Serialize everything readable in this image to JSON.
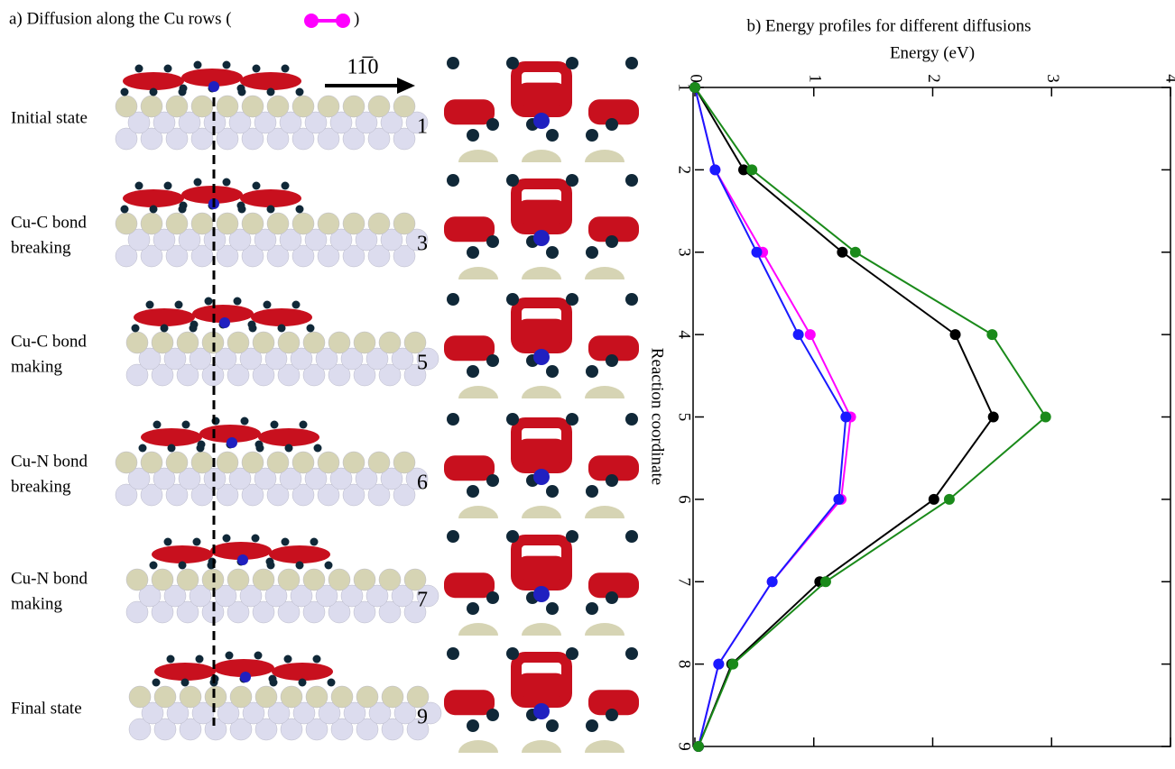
{
  "panel_a": {
    "title": "a) Diffusion along the Cu rows (",
    "title_end": ")",
    "direction": "11̅0",
    "states": [
      {
        "lines": [
          "Initial  state"
        ],
        "step": "1"
      },
      {
        "lines": [
          "Cu-C bond",
          "breaking"
        ],
        "step": "3"
      },
      {
        "lines": [
          "Cu-C  bond",
          "making"
        ],
        "step": "5"
      },
      {
        "lines": [
          "Cu-N bond",
          "breaking"
        ],
        "step": "6"
      },
      {
        "lines": [
          "Cu-N bond",
          "making"
        ],
        "step": "7"
      },
      {
        "lines": [
          "Final state"
        ],
        "step": "9"
      }
    ]
  },
  "chart_data": {
    "type": "line",
    "title": "b) Energy profiles for different diffusions",
    "y_label": "Energy (eV)",
    "x_label": "Reaction coordinate",
    "x": [
      1,
      2,
      3,
      4,
      5,
      6,
      7,
      8,
      9
    ],
    "xlim": [
      1,
      9
    ],
    "xticks": [
      1,
      2,
      3,
      4,
      5,
      6,
      7,
      8,
      9
    ],
    "ylim": [
      0,
      4
    ],
    "yticks": [
      0,
      1,
      2,
      3,
      4
    ],
    "series": [
      {
        "color": "#ff00ff",
        "values": [
          0,
          0.17,
          0.57,
          0.97,
          1.31,
          1.23,
          0.65,
          0.2,
          0.03
        ]
      },
      {
        "color": "#1a1aff",
        "values": [
          0,
          0.17,
          0.52,
          0.87,
          1.27,
          1.21,
          0.65,
          0.2,
          0.03
        ]
      },
      {
        "color": "#000000",
        "values": [
          0,
          0.41,
          1.24,
          2.19,
          2.51,
          2.01,
          1.05,
          0.31,
          0.03
        ]
      },
      {
        "color": "#1a8a1a",
        "values": [
          0,
          0.48,
          1.35,
          2.5,
          2.95,
          2.14,
          1.1,
          0.32,
          0.03
        ]
      }
    ]
  }
}
